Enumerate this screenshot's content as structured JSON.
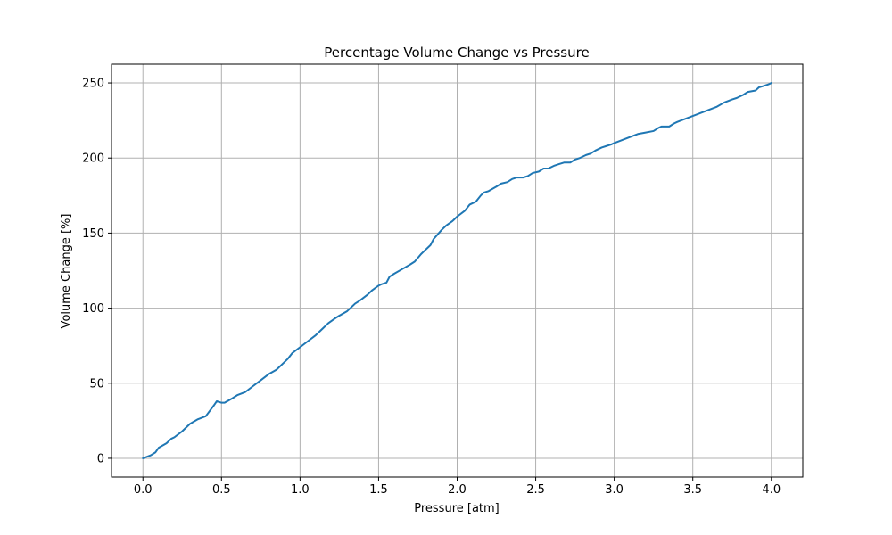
{
  "chart_data": {
    "type": "line",
    "title": "Percentage Volume Change vs Pressure",
    "xlabel": "Pressure [atm]",
    "ylabel": "Volume Change [%]",
    "xlim": [
      -0.2,
      4.2
    ],
    "ylim": [
      -12.5,
      262.5
    ],
    "xticks": [
      0.0,
      0.5,
      1.0,
      1.5,
      2.0,
      2.5,
      3.0,
      3.5,
      4.0
    ],
    "xtick_labels": [
      "0.0",
      "0.5",
      "1.0",
      "1.5",
      "2.0",
      "2.5",
      "3.0",
      "3.5",
      "4.0"
    ],
    "yticks": [
      0,
      50,
      100,
      150,
      200,
      250
    ],
    "ytick_labels": [
      "0",
      "50",
      "100",
      "150",
      "200",
      "250"
    ],
    "grid": true,
    "series": [
      {
        "color": "#1f77b4",
        "x": [
          0.0,
          0.05,
          0.08,
          0.1,
          0.15,
          0.18,
          0.2,
          0.25,
          0.3,
          0.35,
          0.4,
          0.45,
          0.47,
          0.5,
          0.52,
          0.57,
          0.6,
          0.65,
          0.7,
          0.75,
          0.8,
          0.85,
          0.88,
          0.92,
          0.95,
          1.0,
          1.05,
          1.1,
          1.15,
          1.18,
          1.22,
          1.25,
          1.3,
          1.35,
          1.38,
          1.43,
          1.46,
          1.5,
          1.52,
          1.55,
          1.57,
          1.6,
          1.65,
          1.7,
          1.73,
          1.77,
          1.8,
          1.83,
          1.85,
          1.9,
          1.93,
          1.97,
          2.0,
          2.05,
          2.08,
          2.12,
          2.15,
          2.17,
          2.2,
          2.25,
          2.28,
          2.32,
          2.35,
          2.38,
          2.42,
          2.45,
          2.48,
          2.52,
          2.55,
          2.58,
          2.62,
          2.65,
          2.68,
          2.72,
          2.75,
          2.78,
          2.82,
          2.85,
          2.88,
          2.92,
          2.95,
          2.98,
          3.0,
          3.05,
          3.1,
          3.15,
          3.2,
          3.25,
          3.28,
          3.3,
          3.35,
          3.38,
          3.4,
          3.45,
          3.5,
          3.55,
          3.6,
          3.65,
          3.7,
          3.75,
          3.78,
          3.82,
          3.85,
          3.9,
          3.92,
          3.95,
          3.98,
          4.0
        ],
        "values": [
          0,
          2,
          4,
          7,
          10,
          13,
          14,
          18,
          23,
          26,
          28,
          35,
          38,
          37,
          37,
          40,
          42,
          44,
          48,
          52,
          56,
          59,
          62,
          66,
          70,
          74,
          78,
          82,
          87,
          90,
          93,
          95,
          98,
          103,
          105,
          109,
          112,
          115,
          116,
          117,
          121,
          123,
          126,
          129,
          131,
          136,
          139,
          142,
          146,
          152,
          155,
          158,
          161,
          165,
          169,
          171,
          175,
          177,
          178,
          181,
          183,
          184,
          186,
          187,
          187,
          188,
          190,
          191,
          193,
          193,
          195,
          196,
          197,
          197,
          199,
          200,
          202,
          203,
          205,
          207,
          208,
          209,
          210,
          212,
          214,
          216,
          217,
          218,
          220,
          221,
          221,
          223,
          224,
          226,
          228,
          230,
          232,
          234,
          237,
          239,
          240,
          242,
          244,
          245,
          247,
          248,
          249,
          250
        ]
      }
    ]
  }
}
